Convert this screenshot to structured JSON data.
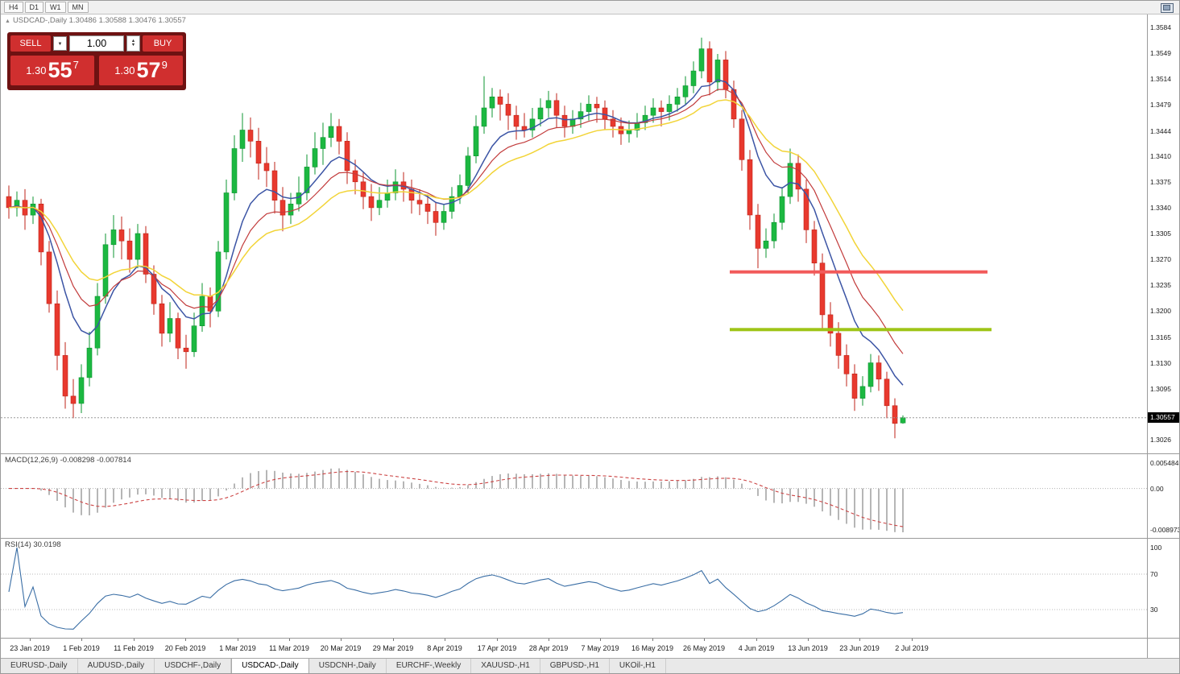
{
  "window": {
    "toolbar_timeframes": [
      "H4",
      "D1",
      "W1",
      "MN"
    ]
  },
  "chart_header": {
    "collapse_icon": "▲",
    "title": "USDCAD-,Daily  1.30486 1.30588 1.30476 1.30557"
  },
  "trade_panel": {
    "sell_label": "SELL",
    "buy_label": "BUY",
    "volume": "1.00",
    "volume_dropdown_icon": "▼",
    "spinner_up_icon": "▲",
    "spinner_down_icon": "▼",
    "sell_price": {
      "prefix": "1.30",
      "big": "55",
      "sup": "7"
    },
    "buy_price": {
      "prefix": "1.30",
      "big": "57",
      "sup": "9"
    }
  },
  "price_axis": {
    "labels": [
      "1.3584",
      "1.3549",
      "1.3514",
      "1.3479",
      "1.3444",
      "1.3410",
      "1.3375",
      "1.3340",
      "1.3305",
      "1.3270",
      "1.3235",
      "1.3200",
      "1.3165",
      "1.3130",
      "1.3095",
      "1.3060",
      "1.3026"
    ],
    "current_price_tag": "1.30557"
  },
  "macd_panel": {
    "label": "MACD(12,26,9) -0.008298 -0.007814",
    "axis_labels": [
      {
        "text": "0.005484",
        "value": 0.005484
      },
      {
        "text": "0.00",
        "value": 0
      },
      {
        "text": "-0.008973",
        "value": -0.008973
      }
    ]
  },
  "rsi_panel": {
    "label": "RSI(14) 30.0198",
    "axis_labels": [
      {
        "text": "100",
        "value": 100
      },
      {
        "text": "70",
        "value": 70
      },
      {
        "text": "30",
        "value": 30
      }
    ],
    "levels": [
      70,
      30
    ]
  },
  "date_axis": [
    "23 Jan 2019",
    "1 Feb 2019",
    "11 Feb 2019",
    "20 Feb 2019",
    "1 Mar 2019",
    "11 Mar 2019",
    "20 Mar 2019",
    "29 Mar 2019",
    "8 Apr 2019",
    "17 Apr 2019",
    "28 Apr 2019",
    "7 May 2019",
    "16 May 2019",
    "26 May 2019",
    "4 Jun 2019",
    "13 Jun 2019",
    "23 Jun 2019",
    "2 Jul 2019"
  ],
  "tabs": [
    {
      "label": "EURUSD-,Daily",
      "active": false
    },
    {
      "label": "AUDUSD-,Daily",
      "active": false
    },
    {
      "label": "USDCHF-,Daily",
      "active": false
    },
    {
      "label": "USDCAD-,Daily",
      "active": true
    },
    {
      "label": "USDCNH-,Daily",
      "active": false
    },
    {
      "label": "EURCHF-,Weekly",
      "active": false
    },
    {
      "label": "XAUUSD-,H1",
      "active": false
    },
    {
      "label": "GBPUSD-,H1",
      "active": false
    },
    {
      "label": "UKOil-,H1",
      "active": false
    }
  ],
  "colors": {
    "candle_up": "#1cb841",
    "candle_up_stroke": "#0d9430",
    "candle_down": "#e8392e",
    "candle_down_stroke": "#bf2318",
    "ma_fast": "#3c55a5",
    "ma_mid": "#c23b3b",
    "ma_slow": "#f2d438",
    "resistance_line": "#f25a5a",
    "support_line": "#9ec417",
    "macd_histogram": "#b6b6b6",
    "macd_signal": "#cc4444",
    "rsi_line": "#3a6ea5",
    "bid_line": "#9a9a9a",
    "price_tag_bg": "#000000",
    "price_tag_text": "#ffffff"
  },
  "chart_data": {
    "type": "candlestick",
    "symbol": "USDCAD-",
    "timeframe": "Daily",
    "last": {
      "open": 1.30486,
      "high": 1.30588,
      "low": 1.30476,
      "close": 1.30557,
      "bid": 1.30557,
      "ask": 1.30579
    },
    "price_scale": {
      "top": 1.3584,
      "bottom": 1.3026
    },
    "ohlc": [
      [
        1.3355,
        1.337,
        1.3325,
        1.334
      ],
      [
        1.334,
        1.3362,
        1.3328,
        1.335
      ],
      [
        1.335,
        1.3365,
        1.331,
        1.333
      ],
      [
        1.333,
        1.3355,
        1.3318,
        1.3345
      ],
      [
        1.3345,
        1.3352,
        1.3262,
        1.328
      ],
      [
        1.328,
        1.3295,
        1.3198,
        1.321
      ],
      [
        1.321,
        1.3228,
        1.312,
        1.314
      ],
      [
        1.314,
        1.3158,
        1.3068,
        1.3085
      ],
      [
        1.3085,
        1.3108,
        1.3055,
        1.3075
      ],
      [
        1.3075,
        1.3128,
        1.3062,
        1.311
      ],
      [
        1.311,
        1.3172,
        1.3098,
        1.315
      ],
      [
        1.315,
        1.3238,
        1.314,
        1.322
      ],
      [
        1.322,
        1.3305,
        1.321,
        1.329
      ],
      [
        1.329,
        1.333,
        1.3272,
        1.331
      ],
      [
        1.331,
        1.3328,
        1.327,
        1.3295
      ],
      [
        1.3295,
        1.3312,
        1.3252,
        1.327
      ],
      [
        1.327,
        1.3318,
        1.3258,
        1.3305
      ],
      [
        1.3305,
        1.3315,
        1.3238,
        1.325
      ],
      [
        1.325,
        1.3262,
        1.3195,
        1.321
      ],
      [
        1.321,
        1.3222,
        1.3152,
        1.317
      ],
      [
        1.317,
        1.3212,
        1.3158,
        1.319
      ],
      [
        1.319,
        1.3198,
        1.3135,
        1.315
      ],
      [
        1.315,
        1.3168,
        1.3122,
        1.3145
      ],
      [
        1.3145,
        1.3198,
        1.3138,
        1.318
      ],
      [
        1.318,
        1.3238,
        1.3172,
        1.322
      ],
      [
        1.322,
        1.3232,
        1.3178,
        1.32
      ],
      [
        1.32,
        1.3295,
        1.3192,
        1.328
      ],
      [
        1.328,
        1.3378,
        1.327,
        1.336
      ],
      [
        1.336,
        1.3438,
        1.335,
        1.342
      ],
      [
        1.342,
        1.3468,
        1.3402,
        1.3445
      ],
      [
        1.3445,
        1.3462,
        1.3408,
        1.343
      ],
      [
        1.343,
        1.3448,
        1.3378,
        1.34
      ],
      [
        1.34,
        1.3422,
        1.3368,
        1.339
      ],
      [
        1.339,
        1.3402,
        1.3332,
        1.335
      ],
      [
        1.335,
        1.3368,
        1.3308,
        1.333
      ],
      [
        1.333,
        1.336,
        1.3318,
        1.3345
      ],
      [
        1.3345,
        1.3382,
        1.3335,
        1.336
      ],
      [
        1.336,
        1.3412,
        1.335,
        1.3395
      ],
      [
        1.3395,
        1.3442,
        1.3385,
        1.342
      ],
      [
        1.342,
        1.3455,
        1.3398,
        1.3435
      ],
      [
        1.3435,
        1.3468,
        1.3422,
        1.345
      ],
      [
        1.345,
        1.346,
        1.3412,
        1.343
      ],
      [
        1.343,
        1.3442,
        1.3372,
        1.339
      ],
      [
        1.339,
        1.3405,
        1.3358,
        1.3375
      ],
      [
        1.3375,
        1.3388,
        1.3338,
        1.3355
      ],
      [
        1.3355,
        1.3372,
        1.3322,
        1.334
      ],
      [
        1.334,
        1.3368,
        1.333,
        1.335
      ],
      [
        1.335,
        1.3378,
        1.334,
        1.336
      ],
      [
        1.336,
        1.3392,
        1.335,
        1.3375
      ],
      [
        1.3375,
        1.3388,
        1.3348,
        1.3365
      ],
      [
        1.3365,
        1.3378,
        1.3332,
        1.335
      ],
      [
        1.335,
        1.3365,
        1.333,
        1.3345
      ],
      [
        1.3345,
        1.3358,
        1.3318,
        1.3335
      ],
      [
        1.3335,
        1.3348,
        1.3302,
        1.332
      ],
      [
        1.332,
        1.3345,
        1.331,
        1.3335
      ],
      [
        1.3335,
        1.3368,
        1.3325,
        1.3355
      ],
      [
        1.3355,
        1.3385,
        1.3345,
        1.337
      ],
      [
        1.337,
        1.3422,
        1.336,
        1.341
      ],
      [
        1.341,
        1.3465,
        1.34,
        1.345
      ],
      [
        1.345,
        1.3518,
        1.344,
        1.3475
      ],
      [
        1.3475,
        1.3502,
        1.3462,
        1.349
      ],
      [
        1.349,
        1.35,
        1.3458,
        1.348
      ],
      [
        1.348,
        1.3495,
        1.3445,
        1.3465
      ],
      [
        1.3465,
        1.3478,
        1.3432,
        1.345
      ],
      [
        1.345,
        1.3468,
        1.3435,
        1.3445
      ],
      [
        1.3445,
        1.3475,
        1.3435,
        1.346
      ],
      [
        1.346,
        1.3488,
        1.345,
        1.3475
      ],
      [
        1.3475,
        1.3498,
        1.3462,
        1.3485
      ],
      [
        1.3485,
        1.3495,
        1.3448,
        1.3465
      ],
      [
        1.3465,
        1.3478,
        1.3435,
        1.345
      ],
      [
        1.345,
        1.3472,
        1.344,
        1.346
      ],
      [
        1.346,
        1.3482,
        1.3448,
        1.347
      ],
      [
        1.347,
        1.3492,
        1.3458,
        1.348
      ],
      [
        1.348,
        1.349,
        1.3455,
        1.3475
      ],
      [
        1.3475,
        1.3485,
        1.3445,
        1.346
      ],
      [
        1.346,
        1.3472,
        1.3435,
        1.345
      ],
      [
        1.345,
        1.3462,
        1.3425,
        1.344
      ],
      [
        1.344,
        1.3458,
        1.3428,
        1.3445
      ],
      [
        1.3445,
        1.3468,
        1.3435,
        1.3455
      ],
      [
        1.3455,
        1.3478,
        1.3445,
        1.3465
      ],
      [
        1.3465,
        1.3488,
        1.3455,
        1.3475
      ],
      [
        1.3475,
        1.3485,
        1.345,
        1.347
      ],
      [
        1.347,
        1.3492,
        1.3458,
        1.348
      ],
      [
        1.348,
        1.3502,
        1.347,
        1.349
      ],
      [
        1.349,
        1.3518,
        1.348,
        1.3505
      ],
      [
        1.3505,
        1.3538,
        1.3495,
        1.3525
      ],
      [
        1.3525,
        1.357,
        1.3515,
        1.3555
      ],
      [
        1.3555,
        1.3565,
        1.3492,
        1.351
      ],
      [
        1.351,
        1.3548,
        1.3498,
        1.354
      ],
      [
        1.354,
        1.3552,
        1.3488,
        1.35
      ],
      [
        1.35,
        1.3512,
        1.3448,
        1.346
      ],
      [
        1.346,
        1.3472,
        1.339,
        1.3405
      ],
      [
        1.3405,
        1.3418,
        1.331,
        1.333
      ],
      [
        1.333,
        1.3345,
        1.3258,
        1.3285
      ],
      [
        1.3285,
        1.3312,
        1.3272,
        1.3295
      ],
      [
        1.3295,
        1.3332,
        1.3285,
        1.332
      ],
      [
        1.332,
        1.3368,
        1.331,
        1.3355
      ],
      [
        1.3355,
        1.342,
        1.3345,
        1.34
      ],
      [
        1.34,
        1.3412,
        1.3348,
        1.3365
      ],
      [
        1.3365,
        1.3378,
        1.3292,
        1.331
      ],
      [
        1.331,
        1.3322,
        1.3248,
        1.3265
      ],
      [
        1.3265,
        1.3278,
        1.3175,
        1.3195
      ],
      [
        1.3195,
        1.3212,
        1.3152,
        1.317
      ],
      [
        1.317,
        1.3185,
        1.3122,
        1.314
      ],
      [
        1.314,
        1.3155,
        1.3098,
        1.3115
      ],
      [
        1.3115,
        1.3128,
        1.3065,
        1.3082
      ],
      [
        1.3082,
        1.3112,
        1.3072,
        1.3098
      ],
      [
        1.3098,
        1.3142,
        1.309,
        1.313
      ],
      [
        1.313,
        1.314,
        1.3092,
        1.3108
      ],
      [
        1.3108,
        1.3118,
        1.3055,
        1.3072
      ],
      [
        1.3072,
        1.3082,
        1.3028,
        1.3048
      ],
      [
        1.30486,
        1.30588,
        1.30476,
        1.30557
      ]
    ],
    "moving_averages": [
      {
        "type": "ema",
        "period": 8,
        "color_key": "ma_fast",
        "width": 1.5
      },
      {
        "type": "ema",
        "period": 13,
        "color_key": "ma_mid",
        "width": 1.2
      },
      {
        "type": "ema",
        "period": 21,
        "color_key": "ma_slow",
        "width": 1.5
      }
    ],
    "hlines": [
      {
        "name": "resistance-hline",
        "price": 1.3253,
        "bar_from": 90,
        "bar_to": 121,
        "color_key": "resistance_line",
        "thickness": 4
      },
      {
        "name": "support-hline",
        "price": 1.3175,
        "bar_from": 90,
        "bar_to": 121.5,
        "color_key": "support_line",
        "thickness": 4
      }
    ],
    "macd": {
      "fast": 12,
      "slow": 26,
      "signal": 9,
      "current": -0.008298,
      "current_signal": -0.007814,
      "scale_max": 0.0062,
      "scale_min": -0.0098
    },
    "rsi": {
      "period": 14,
      "current": 30.0198
    }
  }
}
